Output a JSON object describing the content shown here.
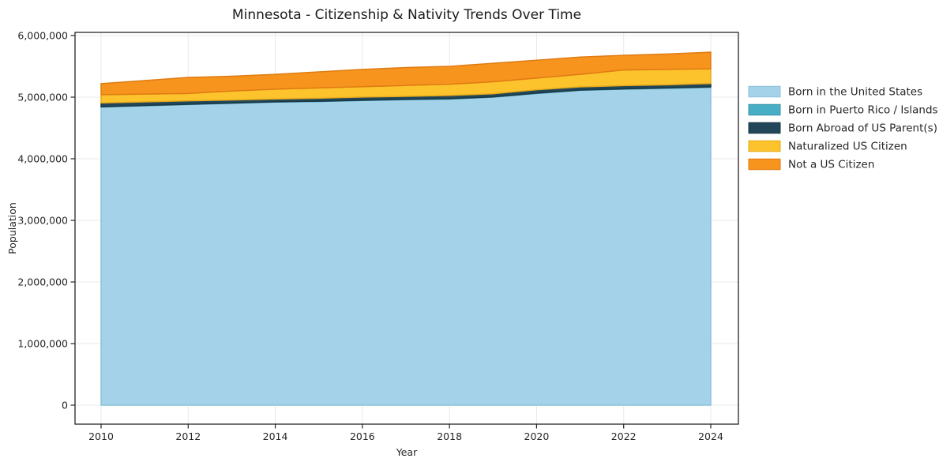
{
  "chart_data": {
    "type": "area",
    "stacked": true,
    "title": "Minnesota - Citizenship & Nativity Trends Over Time",
    "xlabel": "Year",
    "ylabel": "Population",
    "x": [
      2010,
      2011,
      2012,
      2013,
      2014,
      2015,
      2016,
      2017,
      2018,
      2019,
      2020,
      2021,
      2022,
      2023,
      2024
    ],
    "series": [
      {
        "name": "Born in the United States",
        "color": "#A3D2E9",
        "edge_color": "#8CC1DC",
        "values": [
          4840000,
          4860000,
          4880000,
          4900000,
          4920000,
          4930000,
          4945000,
          4960000,
          4970000,
          5000000,
          5060000,
          5110000,
          5130000,
          5145000,
          5160000
        ]
      },
      {
        "name": "Born in Puerto Rico / Islands",
        "color": "#47AEC6",
        "edge_color": "#3A95AA",
        "values": [
          5000,
          5000,
          5000,
          4000,
          5000,
          5000,
          6000,
          5000,
          5000,
          5000,
          5000,
          6000,
          5000,
          5000,
          6000
        ]
      },
      {
        "name": "Born Abroad of US Parent(s)",
        "color": "#22475A",
        "edge_color": "#1A3845",
        "values": [
          60000,
          58000,
          55000,
          50000,
          45000,
          48000,
          50000,
          48000,
          52000,
          50000,
          55000,
          50000,
          52000,
          50000,
          55000
        ]
      },
      {
        "name": "Naturalized US Citizen",
        "color": "#FCC32D",
        "edge_color": "#E5A91A",
        "values": [
          135000,
          127000,
          120000,
          146000,
          160000,
          167000,
          169000,
          177000,
          183000,
          195000,
          190000,
          204000,
          253000,
          250000,
          239000
        ]
      },
      {
        "name": "Not a US Citizen",
        "color": "#F7941E",
        "edge_color": "#E07B12",
        "values": [
          180000,
          220000,
          260000,
          240000,
          240000,
          260000,
          280000,
          290000,
          290000,
          300000,
          290000,
          280000,
          240000,
          250000,
          270000
        ]
      }
    ],
    "ylim": [
      0,
      6000000
    ],
    "yticks": [
      0,
      1000000,
      2000000,
      3000000,
      4000000,
      5000000,
      6000000
    ],
    "ytick_labels": [
      "0",
      "1,000,000",
      "2,000,000",
      "3,000,000",
      "4,000,000",
      "5,000,000",
      "6,000,000"
    ],
    "xticks": [
      2010,
      2012,
      2014,
      2016,
      2018,
      2020,
      2022,
      2024
    ],
    "xtick_labels": [
      "2010",
      "2012",
      "2014",
      "2016",
      "2018",
      "2020",
      "2022",
      "2024"
    ],
    "grid": true,
    "grid_color": "#E9E9E9",
    "frame_color": "#262626",
    "legend_position": "right"
  }
}
